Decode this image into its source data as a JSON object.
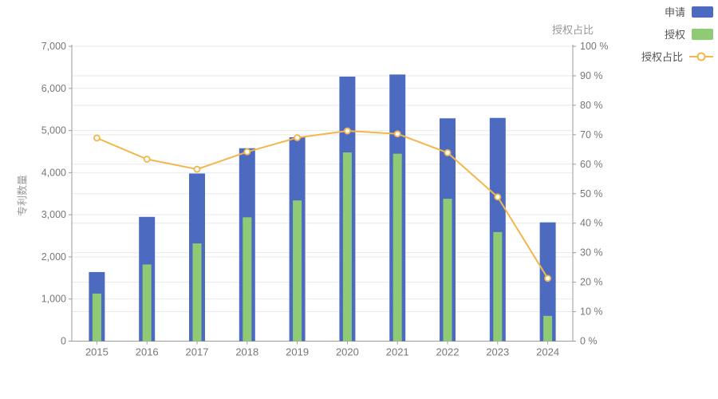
{
  "chart_data": {
    "type": "bar-line-combo",
    "categories": [
      "2015",
      "2016",
      "2017",
      "2018",
      "2019",
      "2020",
      "2021",
      "2022",
      "2023",
      "2024"
    ],
    "series": [
      {
        "name": "申请",
        "type": "bar",
        "axis": "left",
        "values": [
          1640,
          2950,
          3980,
          4580,
          4840,
          6280,
          6330,
          5290,
          5300,
          2820
        ]
      },
      {
        "name": "授权",
        "type": "bar",
        "axis": "left",
        "values": [
          1130,
          1820,
          2320,
          2940,
          3340,
          4480,
          4450,
          3380,
          2590,
          600
        ]
      },
      {
        "name": "授权占比",
        "type": "line",
        "axis": "right",
        "values": [
          68.9,
          61.7,
          58.3,
          64.2,
          69.0,
          71.3,
          70.3,
          63.9,
          48.9,
          21.3
        ]
      }
    ],
    "left_axis": {
      "title": "专利数量",
      "min": 0,
      "max": 7000,
      "step": 1000,
      "tick_labels": [
        "0",
        "1,000",
        "2,000",
        "3,000",
        "4,000",
        "5,000",
        "6,000",
        "7,000"
      ]
    },
    "right_axis": {
      "title": "授权占比",
      "min": 0,
      "max": 100,
      "step": 10,
      "tick_labels": [
        "0 %",
        "10 %",
        "20 %",
        "30 %",
        "40 %",
        "50 %",
        "60 %",
        "70 %",
        "80 %",
        "90 %",
        "100 %"
      ]
    },
    "legend": {
      "position": "top-right",
      "items": [
        "申请",
        "授权",
        "授权占比"
      ]
    },
    "grid": "horizontal lines for both axes"
  },
  "colors": {
    "applications_bar": "#4d6ac1",
    "grants_bar": "#8ecb74",
    "ratio_line": "#f3b64c",
    "grid_line": "#e9e9e9",
    "axis_line": "#9b9b9b",
    "tick_text": "#777777",
    "axis_title_text": "#999999",
    "legend_text": "#555555",
    "background": "#ffffff"
  }
}
